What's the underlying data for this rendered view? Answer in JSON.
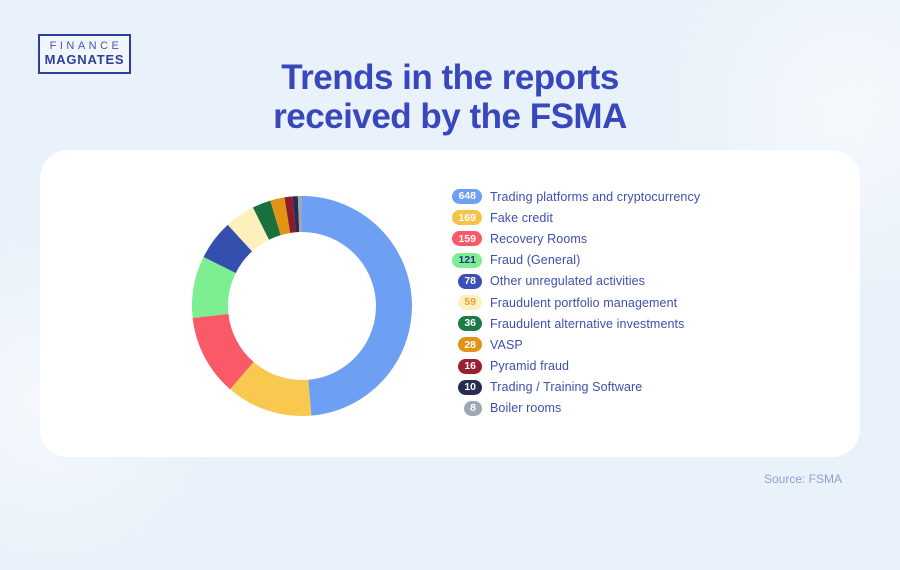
{
  "page": {
    "background_color": "#e9f1fa",
    "card_color": "#ffffff",
    "title_color": "#3847bb",
    "legend_text_color": "#3f4fae",
    "source_label": "Source: FSMA"
  },
  "logo": {
    "line1": "FINANCE",
    "line2": "MAGNATES",
    "border_color": "#2d3f9b"
  },
  "header": {
    "title_line1": "Trends in the reports",
    "title_line2": "received by the FSMA"
  },
  "chart_data": {
    "type": "pie",
    "donut": true,
    "title": "Trends in the reports received by the FSMA",
    "start_angle_deg": 0,
    "direction": "clockwise",
    "legend_position": "right",
    "outer_radius": 110,
    "inner_radius": 74,
    "segments": [
      {
        "label": "Trading platforms and cryptocurrency",
        "value": 648,
        "color": "#6d9ff2",
        "badge_bg": "#6d9ff2",
        "badge_text": "#ffffff"
      },
      {
        "label": "Fake credit",
        "value": 169,
        "color": "#f8c84f",
        "badge_bg": "#f5c24a",
        "badge_text": "#ffffff"
      },
      {
        "label": "Recovery Rooms",
        "value": 159,
        "color": "#fa5a68",
        "badge_bg": "#fa5a68",
        "badge_text": "#ffffff"
      },
      {
        "label": "Fraud (General)",
        "value": 121,
        "color": "#7eee92",
        "badge_bg": "#7eee92",
        "badge_text": "#27357f"
      },
      {
        "label": "Other unregulated activities",
        "value": 78,
        "color": "#3350ae",
        "badge_bg": "#3a51b5",
        "badge_text": "#ffffff"
      },
      {
        "label": "Fraudulent portfolio management",
        "value": 59,
        "color": "#fcf1bd",
        "badge_bg": "#fcf1bd",
        "badge_text": "#e2a23a"
      },
      {
        "label": "Fraudulent alternative investments",
        "value": 36,
        "color": "#18713f",
        "badge_bg": "#1d7a47",
        "badge_text": "#ffffff"
      },
      {
        "label": "VASP",
        "value": 28,
        "color": "#e19413",
        "badge_bg": "#e19413",
        "badge_text": "#ffffff"
      },
      {
        "label": "Pyramid fraud",
        "value": 16,
        "color": "#8e1b2c",
        "badge_bg": "#9c1e31",
        "badge_text": "#ffffff"
      },
      {
        "label": "Trading / Training Software",
        "value": 10,
        "color": "#272c55",
        "badge_bg": "#272c55",
        "badge_text": "#ffffff"
      },
      {
        "label": "Boiler rooms",
        "value": 8,
        "color": "#9ea7b8",
        "badge_bg": "#9ea7b8",
        "badge_text": "#ffffff"
      }
    ]
  }
}
